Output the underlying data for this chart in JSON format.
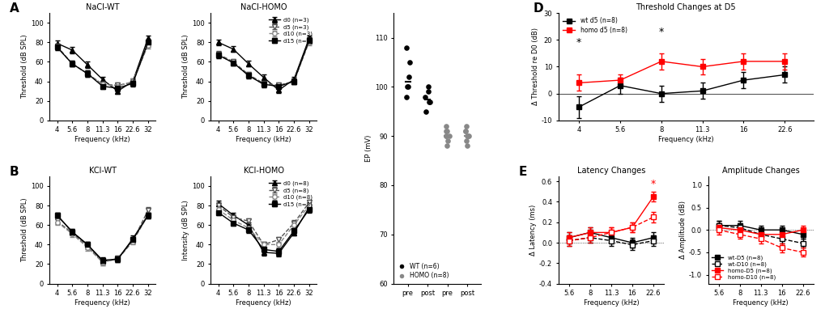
{
  "freqs_abr": [
    4,
    5.6,
    8,
    11.3,
    16,
    22.6,
    32
  ],
  "freqs_abr_labels": [
    "4",
    "5.6",
    "8",
    "11.3",
    "16",
    "22.6",
    "32"
  ],
  "freqs_delta": [
    4,
    5.6,
    8,
    11.3,
    16,
    22.6
  ],
  "freqs_delta_labels": [
    "4",
    "5.6",
    "8",
    "11.3",
    "16",
    "22.6"
  ],
  "freqs_latamp": [
    5.6,
    8,
    11.3,
    16,
    22.6
  ],
  "freqs_latamp_labels": [
    "5.6",
    "8",
    "11.3",
    "16",
    "22.6"
  ],
  "nacl_wt_d0": [
    79,
    72,
    57,
    42,
    30,
    40,
    84
  ],
  "nacl_wt_d5": [
    76,
    58,
    48,
    37,
    36,
    39,
    78
  ],
  "nacl_wt_d10": [
    75,
    58,
    48,
    37,
    35,
    40,
    77
  ],
  "nacl_wt_d15": [
    75,
    58,
    48,
    35,
    33,
    38,
    80
  ],
  "nacl_wt_d0_err": [
    3,
    3,
    3,
    3,
    3,
    3,
    3
  ],
  "nacl_wt_d5_err": [
    3,
    3,
    3,
    3,
    3,
    3,
    3
  ],
  "nacl_wt_d10_err": [
    3,
    3,
    3,
    3,
    3,
    3,
    3
  ],
  "nacl_wt_d15_err": [
    3,
    3,
    3,
    3,
    3,
    3,
    3
  ],
  "nacl_homo_d0": [
    80,
    73,
    58,
    44,
    31,
    42,
    84
  ],
  "nacl_homo_d5": [
    68,
    60,
    47,
    38,
    36,
    40,
    82
  ],
  "nacl_homo_d10": [
    67,
    59,
    46,
    37,
    35,
    40,
    80
  ],
  "nacl_homo_d15": [
    67,
    59,
    46,
    37,
    35,
    40,
    82
  ],
  "nacl_homo_d0_err": [
    3,
    3,
    3,
    3,
    3,
    3,
    3
  ],
  "nacl_homo_d5_err": [
    3,
    3,
    3,
    3,
    3,
    3,
    3
  ],
  "nacl_homo_d10_err": [
    3,
    3,
    3,
    3,
    3,
    3,
    3
  ],
  "nacl_homo_d15_err": [
    3,
    3,
    3,
    3,
    3,
    3,
    3
  ],
  "kcl_wt_d0": [
    70,
    53,
    40,
    23,
    25,
    46,
    70
  ],
  "kcl_wt_d5": [
    64,
    52,
    38,
    22,
    26,
    44,
    75
  ],
  "kcl_wt_d10": [
    63,
    51,
    37,
    22,
    25,
    43,
    70
  ],
  "kcl_wt_d15": [
    70,
    53,
    40,
    24,
    25,
    45,
    70
  ],
  "kcl_wt_d0_err": [
    3,
    3,
    3,
    3,
    3,
    3,
    3
  ],
  "kcl_wt_d5_err": [
    3,
    3,
    3,
    3,
    3,
    3,
    3
  ],
  "kcl_wt_d10_err": [
    3,
    3,
    3,
    3,
    3,
    3,
    3
  ],
  "kcl_wt_d15_err": [
    3,
    3,
    3,
    3,
    3,
    3,
    3
  ],
  "kcl_homo_d0": [
    82,
    70,
    60,
    32,
    31,
    52,
    78
  ],
  "kcl_homo_d5": [
    80,
    68,
    64,
    40,
    45,
    62,
    83
  ],
  "kcl_homo_d10": [
    76,
    65,
    57,
    40,
    40,
    60,
    80
  ],
  "kcl_homo_d15": [
    73,
    62,
    55,
    35,
    33,
    54,
    76
  ],
  "kcl_homo_d0_err": [
    3,
    3,
    3,
    3,
    3,
    3,
    3
  ],
  "kcl_homo_d5_err": [
    3,
    3,
    3,
    3,
    3,
    3,
    3
  ],
  "kcl_homo_d10_err": [
    3,
    3,
    3,
    3,
    3,
    3,
    3
  ],
  "kcl_homo_d15_err": [
    3,
    3,
    3,
    3,
    3,
    3,
    3
  ],
  "ep_wt_pre": [
    100,
    105,
    102,
    100,
    98,
    108
  ],
  "ep_wt_post": [
    95,
    97,
    99,
    100,
    98,
    97
  ],
  "ep_homo_pre": [
    90,
    91,
    92,
    90,
    88,
    89,
    91,
    90
  ],
  "ep_homo_post": [
    90,
    91,
    92,
    89,
    88,
    90,
    91,
    90
  ],
  "delta_wt_d5": [
    -5,
    3,
    0,
    1,
    5,
    7
  ],
  "delta_wt_d5_err": [
    4,
    3,
    3,
    3,
    3,
    3
  ],
  "delta_homo_d5": [
    4,
    5,
    12,
    10,
    12,
    12
  ],
  "delta_homo_d5_err": [
    3,
    2,
    3,
    3,
    3,
    3
  ],
  "latency_wt_d5": [
    0.05,
    0.1,
    0.05,
    0.0,
    0.05
  ],
  "latency_wt_d5_err": [
    0.05,
    0.05,
    0.05,
    0.05,
    0.05
  ],
  "latency_wt_d10": [
    0.02,
    0.05,
    0.02,
    -0.02,
    0.02
  ],
  "latency_wt_d10_err": [
    0.05,
    0.05,
    0.05,
    0.05,
    0.05
  ],
  "latency_homo_d5": [
    0.05,
    0.1,
    0.1,
    0.15,
    0.45
  ],
  "latency_homo_d5_err": [
    0.05,
    0.05,
    0.05,
    0.05,
    0.05
  ],
  "latency_homo_d10": [
    0.02,
    0.05,
    0.1,
    0.15,
    0.25
  ],
  "latency_homo_d10_err": [
    0.05,
    0.05,
    0.05,
    0.05,
    0.05
  ],
  "amp_wt_d5": [
    0.1,
    0.1,
    0.0,
    0.0,
    -0.1
  ],
  "amp_wt_d5_err": [
    0.1,
    0.1,
    0.1,
    0.1,
    0.1
  ],
  "amp_wt_d10": [
    0.1,
    0.05,
    -0.1,
    -0.2,
    -0.3
  ],
  "amp_wt_d10_err": [
    0.1,
    0.1,
    0.1,
    0.1,
    0.1
  ],
  "amp_homo_d5": [
    0.05,
    0.0,
    -0.1,
    -0.1,
    0.0
  ],
  "amp_homo_d5_err": [
    0.1,
    0.1,
    0.1,
    0.1,
    0.1
  ],
  "amp_homo_d10": [
    0.0,
    -0.1,
    -0.2,
    -0.4,
    -0.5
  ],
  "amp_homo_d10_err": [
    0.1,
    0.1,
    0.1,
    0.1,
    0.1
  ],
  "bg_color": "#FFFFFF"
}
